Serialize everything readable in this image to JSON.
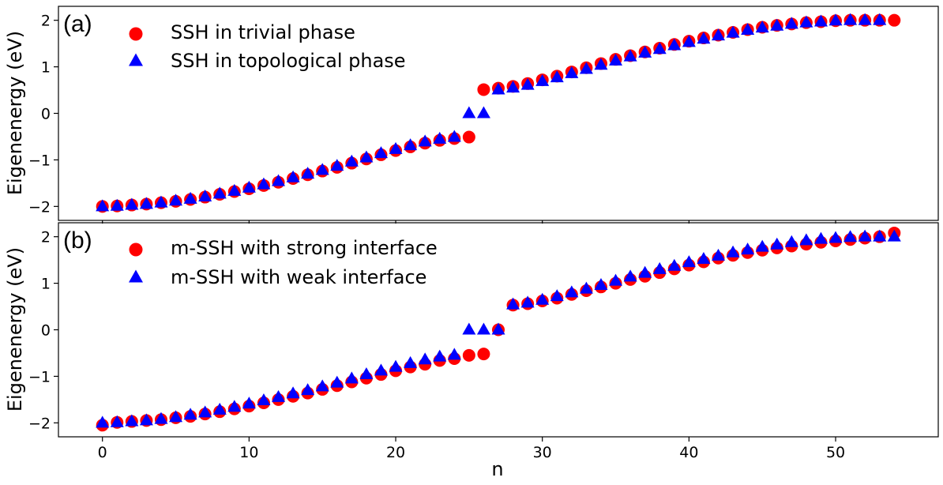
{
  "chart_data": [
    {
      "type": "scatter",
      "panel_label": "(a)",
      "xlabel": "",
      "ylabel": "Eigenenergy (eV)",
      "xlim": [
        -3,
        57
      ],
      "ylim": [
        -2.3,
        2.3
      ],
      "yticks": [
        -2,
        -1,
        0,
        1,
        2
      ],
      "ytick_labels": [
        "−2",
        "−1",
        "0",
        "1",
        "2"
      ],
      "legend_position": "top-left",
      "series": [
        {
          "name": "SSH in trivial phase",
          "marker": "circle",
          "color": "#ff0000",
          "x": [
            0,
            1,
            2,
            3,
            4,
            5,
            6,
            7,
            8,
            9,
            10,
            11,
            12,
            13,
            14,
            15,
            16,
            17,
            18,
            19,
            20,
            21,
            22,
            23,
            24,
            25,
            26,
            27,
            28,
            29,
            30,
            31,
            32,
            33,
            34,
            35,
            36,
            37,
            38,
            39,
            40,
            41,
            42,
            43,
            44,
            45,
            46,
            47,
            48,
            49,
            50,
            51,
            52,
            53,
            54
          ],
          "y": [
            -2.0,
            -1.99,
            -1.97,
            -1.95,
            -1.92,
            -1.89,
            -1.85,
            -1.8,
            -1.74,
            -1.68,
            -1.62,
            -1.55,
            -1.48,
            -1.4,
            -1.32,
            -1.24,
            -1.16,
            -1.07,
            -0.98,
            -0.89,
            -0.8,
            -0.72,
            -0.64,
            -0.58,
            -0.54,
            -0.51,
            0.51,
            0.54,
            0.58,
            0.64,
            0.72,
            0.8,
            0.89,
            0.98,
            1.07,
            1.16,
            1.24,
            1.32,
            1.4,
            1.48,
            1.55,
            1.62,
            1.68,
            1.74,
            1.8,
            1.85,
            1.89,
            1.92,
            1.95,
            1.97,
            1.99,
            2.0,
            2.0,
            2.0,
            2.0
          ]
        },
        {
          "name": "SSH in topological phase",
          "marker": "triangle",
          "color": "#0000ff",
          "x": [
            0,
            1,
            2,
            3,
            4,
            5,
            6,
            7,
            8,
            9,
            10,
            11,
            12,
            13,
            14,
            15,
            16,
            17,
            18,
            19,
            20,
            21,
            22,
            23,
            24,
            25,
            26,
            27,
            28,
            29,
            30,
            31,
            32,
            33,
            34,
            35,
            36,
            37,
            38,
            39,
            40,
            41,
            42,
            43,
            44,
            45,
            46,
            47,
            48,
            49,
            50,
            51,
            52,
            53
          ],
          "y": [
            -2.0,
            -1.99,
            -1.97,
            -1.95,
            -1.92,
            -1.88,
            -1.84,
            -1.79,
            -1.73,
            -1.67,
            -1.6,
            -1.53,
            -1.46,
            -1.38,
            -1.3,
            -1.22,
            -1.13,
            -1.04,
            -0.95,
            -0.86,
            -0.77,
            -0.69,
            -0.61,
            -0.55,
            -0.51,
            0.0,
            0.0,
            0.51,
            0.55,
            0.61,
            0.69,
            0.77,
            0.86,
            0.95,
            1.04,
            1.13,
            1.22,
            1.3,
            1.38,
            1.46,
            1.53,
            1.6,
            1.67,
            1.73,
            1.79,
            1.84,
            1.88,
            1.92,
            1.95,
            1.97,
            1.99,
            2.0,
            2.0,
            2.0
          ]
        }
      ]
    },
    {
      "type": "scatter",
      "panel_label": "(b)",
      "xlabel": "n",
      "ylabel": "Eigenenergy (eV)",
      "xlim": [
        -3,
        57
      ],
      "ylim": [
        -2.3,
        2.3
      ],
      "xticks": [
        0,
        10,
        20,
        30,
        40,
        50
      ],
      "xtick_labels": [
        "0",
        "10",
        "20",
        "30",
        "40",
        "50"
      ],
      "yticks": [
        -2,
        -1,
        0,
        1,
        2
      ],
      "ytick_labels": [
        "−2",
        "−1",
        "0",
        "1",
        "2"
      ],
      "legend_position": "top-left",
      "series": [
        {
          "name": "m-SSH with strong interface",
          "marker": "circle",
          "color": "#ff0000",
          "x": [
            0,
            1,
            2,
            3,
            4,
            5,
            6,
            7,
            8,
            9,
            10,
            11,
            12,
            13,
            14,
            15,
            16,
            17,
            18,
            19,
            20,
            21,
            22,
            23,
            24,
            25,
            26,
            27,
            28,
            29,
            30,
            31,
            32,
            33,
            34,
            35,
            36,
            37,
            38,
            39,
            40,
            41,
            42,
            43,
            44,
            45,
            46,
            47,
            48,
            49,
            50,
            51,
            52,
            53,
            54
          ],
          "y": [
            -2.05,
            -1.99,
            -1.97,
            -1.95,
            -1.93,
            -1.89,
            -1.86,
            -1.81,
            -1.76,
            -1.7,
            -1.64,
            -1.57,
            -1.5,
            -1.43,
            -1.36,
            -1.28,
            -1.2,
            -1.12,
            -1.04,
            -0.96,
            -0.88,
            -0.8,
            -0.74,
            -0.66,
            -0.62,
            -0.55,
            -0.52,
            0.0,
            0.53,
            0.56,
            0.62,
            0.68,
            0.76,
            0.84,
            0.92,
            1.0,
            1.08,
            1.15,
            1.23,
            1.31,
            1.39,
            1.46,
            1.54,
            1.6,
            1.66,
            1.71,
            1.76,
            1.8,
            1.84,
            1.88,
            1.91,
            1.94,
            1.97,
            2.0,
            2.08
          ]
        },
        {
          "name": "m-SSH with weak interface",
          "marker": "triangle",
          "color": "#0000ff",
          "x": [
            0,
            1,
            2,
            3,
            4,
            5,
            6,
            7,
            8,
            9,
            10,
            11,
            12,
            13,
            14,
            15,
            16,
            17,
            18,
            19,
            20,
            21,
            22,
            23,
            24,
            25,
            26,
            27,
            28,
            29,
            30,
            31,
            32,
            33,
            34,
            35,
            36,
            37,
            38,
            39,
            40,
            41,
            42,
            43,
            44,
            45,
            46,
            47,
            48,
            49,
            50,
            51,
            52,
            53,
            54
          ],
          "y": [
            -2.0,
            -1.99,
            -1.97,
            -1.95,
            -1.92,
            -1.88,
            -1.83,
            -1.78,
            -1.72,
            -1.66,
            -1.59,
            -1.52,
            -1.45,
            -1.37,
            -1.3,
            -1.22,
            -1.14,
            -1.05,
            -0.96,
            -0.88,
            -0.8,
            -0.72,
            -0.64,
            -0.58,
            -0.54,
            0.0,
            0.0,
            0.0,
            0.54,
            0.58,
            0.64,
            0.72,
            0.8,
            0.88,
            0.96,
            1.05,
            1.14,
            1.22,
            1.3,
            1.37,
            1.45,
            1.52,
            1.59,
            1.66,
            1.72,
            1.78,
            1.83,
            1.88,
            1.92,
            1.95,
            1.97,
            1.99,
            2.0,
            2.0,
            2.0
          ]
        }
      ]
    }
  ]
}
